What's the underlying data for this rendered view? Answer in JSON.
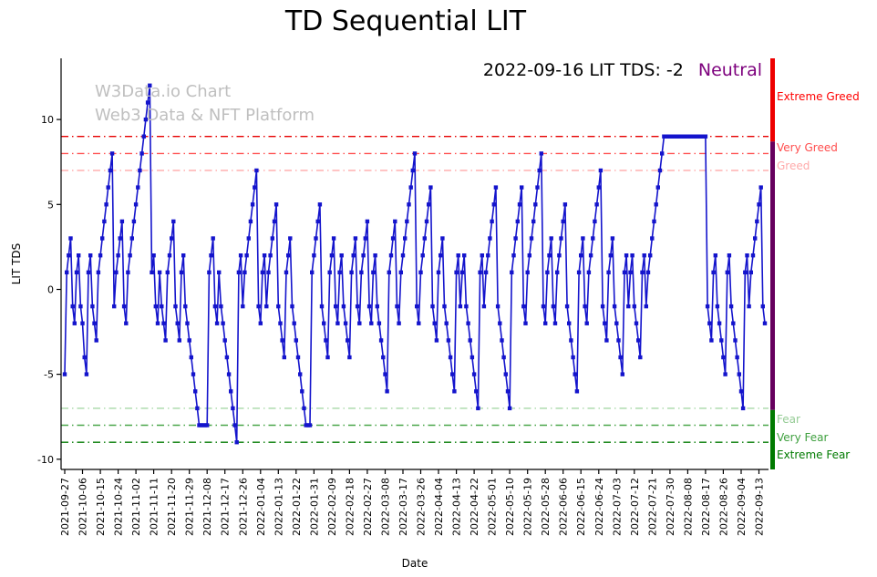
{
  "title": "TD Sequential LIT",
  "watermark": {
    "line1": "W3Data.io Chart",
    "line2": "Web3 Data & NFT Platform"
  },
  "annotation": {
    "text": "2022-09-16 LIT TDS: -2",
    "status": "Neutral",
    "status_color": "#7d007d"
  },
  "chart_data": {
    "type": "line",
    "title": "TD Sequential LIT",
    "xlabel": "Date",
    "ylabel": "LIT TDS",
    "ylim": [
      -10.6,
      13.6
    ],
    "yticks": [
      -10,
      -5,
      0,
      5,
      10
    ],
    "grid": false,
    "legend": "none",
    "start_date": "2021-09-27",
    "end_date": "2022-09-16",
    "frequency": "daily",
    "x_tick_every": 9,
    "x_tick_labels": [
      "2021-09-27",
      "2021-10-06",
      "2021-10-15",
      "2021-10-24",
      "2021-11-02",
      "2021-11-11",
      "2021-11-20",
      "2021-11-29",
      "2021-12-08",
      "2021-12-17",
      "2021-12-26",
      "2022-01-04",
      "2022-01-13",
      "2022-01-22",
      "2022-01-31",
      "2022-02-09",
      "2022-02-18",
      "2022-02-27",
      "2022-03-08",
      "2022-03-17",
      "2022-03-26",
      "2022-04-04",
      "2022-04-13",
      "2022-04-22",
      "2022-05-01",
      "2022-05-10",
      "2022-05-19",
      "2022-05-28",
      "2022-06-06",
      "2022-06-15",
      "2022-06-24",
      "2022-07-03",
      "2022-07-12",
      "2022-07-21",
      "2022-07-30",
      "2022-08-08",
      "2022-08-17",
      "2022-08-26",
      "2022-09-04",
      "2022-09-13"
    ],
    "line_color": "#1414cc",
    "marker": "square",
    "last_point": {
      "date": "2022-09-16",
      "value": -2,
      "sentiment": "Neutral"
    },
    "values": [
      -5,
      1,
      2,
      3,
      -1,
      -2,
      1,
      2,
      -1,
      -2,
      -4,
      -5,
      1,
      2,
      -1,
      -2,
      -3,
      1,
      2,
      3,
      4,
      5,
      6,
      7,
      8,
      -1,
      1,
      2,
      3,
      4,
      -1,
      -2,
      1,
      2,
      3,
      4,
      5,
      6,
      7,
      8,
      9,
      10,
      11,
      12,
      1,
      2,
      -1,
      -2,
      1,
      -1,
      -2,
      -3,
      1,
      2,
      3,
      4,
      -1,
      -2,
      -3,
      1,
      2,
      -1,
      -2,
      -3,
      -4,
      -5,
      -6,
      -7,
      -8,
      -8,
      -8,
      -8,
      -8,
      1,
      2,
      3,
      -1,
      -2,
      1,
      -1,
      -2,
      -3,
      -4,
      -5,
      -6,
      -7,
      -8,
      -9,
      1,
      2,
      -1,
      1,
      2,
      3,
      4,
      5,
      6,
      7,
      -1,
      -2,
      1,
      2,
      -1,
      1,
      2,
      3,
      4,
      5,
      -1,
      -2,
      -3,
      -4,
      1,
      2,
      3,
      -1,
      -2,
      -3,
      -4,
      -5,
      -6,
      -7,
      -8,
      -8,
      -8,
      1,
      2,
      3,
      4,
      5,
      -1,
      -2,
      -3,
      -4,
      1,
      2,
      3,
      -1,
      -2,
      1,
      2,
      -1,
      -2,
      -3,
      -4,
      1,
      2,
      3,
      -1,
      -2,
      1,
      2,
      3,
      4,
      -1,
      -2,
      1,
      2,
      -1,
      -2,
      -3,
      -4,
      -5,
      -6,
      1,
      2,
      3,
      4,
      -1,
      -2,
      1,
      2,
      3,
      4,
      5,
      6,
      7,
      8,
      -1,
      -2,
      1,
      2,
      3,
      4,
      5,
      6,
      -1,
      -2,
      -3,
      1,
      2,
      3,
      -1,
      -2,
      -3,
      -4,
      -5,
      -6,
      1,
      2,
      -1,
      1,
      2,
      -1,
      -2,
      -3,
      -4,
      -5,
      -6,
      -7,
      1,
      2,
      -1,
      1,
      2,
      3,
      4,
      5,
      6,
      -1,
      -2,
      -3,
      -4,
      -5,
      -6,
      -7,
      1,
      2,
      3,
      4,
      5,
      6,
      -1,
      -2,
      1,
      2,
      3,
      4,
      5,
      6,
      7,
      8,
      -1,
      -2,
      1,
      2,
      3,
      -1,
      -2,
      1,
      2,
      3,
      4,
      5,
      -1,
      -2,
      -3,
      -4,
      -5,
      -6,
      1,
      2,
      3,
      -1,
      -2,
      1,
      2,
      3,
      4,
      5,
      6,
      7,
      -1,
      -2,
      -3,
      1,
      2,
      3,
      -1,
      -2,
      -3,
      -4,
      -5,
      1,
      2,
      -1,
      1,
      2,
      -1,
      -2,
      -3,
      -4,
      1,
      2,
      -1,
      1,
      2,
      3,
      4,
      5,
      6,
      7,
      8,
      9,
      9,
      9,
      9,
      9,
      9,
      9,
      9,
      9,
      9,
      9,
      9,
      9,
      9,
      9,
      9,
      9,
      9,
      9,
      9,
      9,
      9,
      -1,
      -2,
      -3,
      1,
      2,
      -1,
      -2,
      -3,
      -4,
      -5,
      1,
      2,
      -1,
      -2,
      -3,
      -4,
      -5,
      -6,
      -7,
      1,
      2,
      -1,
      1,
      2,
      3,
      4,
      5,
      6,
      -1,
      -2
    ],
    "threshold_lines": [
      {
        "value": 9,
        "color": "#e60000"
      },
      {
        "value": 8,
        "color": "#ff5050"
      },
      {
        "value": 7,
        "color": "#ffb0b0"
      },
      {
        "value": -7,
        "color": "#a8d8a8"
      },
      {
        "value": -8,
        "color": "#4aa64a"
      },
      {
        "value": -9,
        "color": "#007a00"
      }
    ],
    "zones": [
      {
        "name": "greed",
        "from": 8.7,
        "to": 13.6,
        "color": "#ee0000"
      },
      {
        "name": "neutral",
        "from": -7.1,
        "to": 8.7,
        "color": "#66005e"
      },
      {
        "name": "fear",
        "from": -10.6,
        "to": -7.1,
        "color": "#007a00"
      }
    ],
    "zone_labels": [
      {
        "label": "Extreme Greed",
        "color": "#ff0000",
        "at": 11.3
      },
      {
        "label": "Very Greed",
        "color": "#ff4d4d",
        "at": 8.3
      },
      {
        "label": "Greed",
        "color": "#ffaaaa",
        "at": 7.2
      },
      {
        "label": "Fear",
        "color": "#96cc96",
        "at": -7.7
      },
      {
        "label": "Very Fear",
        "color": "#3fa03f",
        "at": -8.75
      },
      {
        "label": "Extreme Fear",
        "color": "#007a00",
        "at": -9.8
      }
    ]
  }
}
